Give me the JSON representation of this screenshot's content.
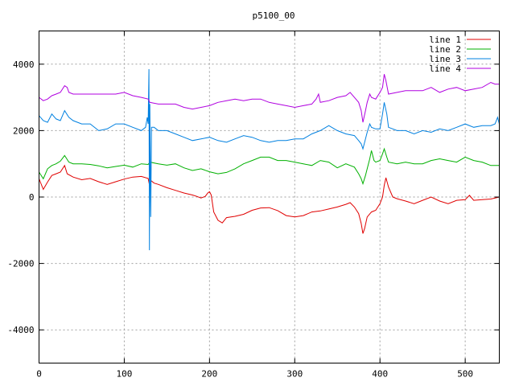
{
  "chart_data": {
    "type": "line",
    "title": "p5100_00",
    "xlabel": "",
    "ylabel": "",
    "xlim": [
      0,
      540
    ],
    "ylim": [
      -5000,
      5000
    ],
    "x_ticks": [
      0,
      100,
      200,
      300,
      400,
      500
    ],
    "y_ticks": [
      -4000,
      -2000,
      0,
      2000,
      4000
    ],
    "grid": true,
    "legend_position": "top-right",
    "series": [
      {
        "name": "line 1",
        "color": "#e00000",
        "points": [
          [
            0,
            550
          ],
          [
            5,
            230
          ],
          [
            10,
            450
          ],
          [
            15,
            650
          ],
          [
            20,
            700
          ],
          [
            25,
            750
          ],
          [
            30,
            950
          ],
          [
            33,
            700
          ],
          [
            40,
            600
          ],
          [
            50,
            520
          ],
          [
            60,
            560
          ],
          [
            70,
            460
          ],
          [
            80,
            380
          ],
          [
            90,
            460
          ],
          [
            100,
            540
          ],
          [
            110,
            600
          ],
          [
            120,
            620
          ],
          [
            128,
            560
          ],
          [
            129,
            440
          ],
          [
            130,
            520
          ],
          [
            135,
            420
          ],
          [
            140,
            380
          ],
          [
            150,
            280
          ],
          [
            160,
            200
          ],
          [
            170,
            120
          ],
          [
            180,
            60
          ],
          [
            185,
            20
          ],
          [
            190,
            -30
          ],
          [
            195,
            20
          ],
          [
            198,
            120
          ],
          [
            200,
            160
          ],
          [
            202,
            60
          ],
          [
            205,
            -450
          ],
          [
            210,
            -700
          ],
          [
            215,
            -780
          ],
          [
            220,
            -620
          ],
          [
            230,
            -580
          ],
          [
            240,
            -520
          ],
          [
            250,
            -400
          ],
          [
            260,
            -330
          ],
          [
            270,
            -320
          ],
          [
            280,
            -410
          ],
          [
            290,
            -560
          ],
          [
            300,
            -600
          ],
          [
            310,
            -560
          ],
          [
            320,
            -450
          ],
          [
            330,
            -420
          ],
          [
            340,
            -360
          ],
          [
            350,
            -300
          ],
          [
            360,
            -220
          ],
          [
            365,
            -170
          ],
          [
            370,
            -300
          ],
          [
            375,
            -500
          ],
          [
            378,
            -800
          ],
          [
            380,
            -1100
          ],
          [
            382,
            -950
          ],
          [
            385,
            -600
          ],
          [
            390,
            -450
          ],
          [
            395,
            -400
          ],
          [
            400,
            -200
          ],
          [
            403,
            0
          ],
          [
            405,
            350
          ],
          [
            407,
            580
          ],
          [
            410,
            300
          ],
          [
            415,
            0
          ],
          [
            420,
            -50
          ],
          [
            430,
            -120
          ],
          [
            440,
            -200
          ],
          [
            450,
            -100
          ],
          [
            460,
            0
          ],
          [
            470,
            -120
          ],
          [
            480,
            -200
          ],
          [
            490,
            -100
          ],
          [
            500,
            -80
          ],
          [
            505,
            50
          ],
          [
            510,
            -100
          ],
          [
            520,
            -80
          ],
          [
            530,
            -60
          ],
          [
            540,
            0
          ]
        ]
      },
      {
        "name": "line 2",
        "color": "#00b000",
        "points": [
          [
            0,
            750
          ],
          [
            5,
            550
          ],
          [
            10,
            850
          ],
          [
            15,
            950
          ],
          [
            20,
            1000
          ],
          [
            25,
            1080
          ],
          [
            30,
            1250
          ],
          [
            35,
            1050
          ],
          [
            40,
            1000
          ],
          [
            50,
            1000
          ],
          [
            60,
            980
          ],
          [
            70,
            940
          ],
          [
            80,
            880
          ],
          [
            90,
            920
          ],
          [
            100,
            960
          ],
          [
            110,
            900
          ],
          [
            120,
            1000
          ],
          [
            128,
            980
          ],
          [
            130,
            1050
          ],
          [
            140,
            1000
          ],
          [
            150,
            960
          ],
          [
            160,
            1000
          ],
          [
            170,
            880
          ],
          [
            180,
            800
          ],
          [
            190,
            850
          ],
          [
            200,
            760
          ],
          [
            210,
            700
          ],
          [
            220,
            740
          ],
          [
            230,
            850
          ],
          [
            240,
            1000
          ],
          [
            250,
            1100
          ],
          [
            260,
            1200
          ],
          [
            270,
            1200
          ],
          [
            280,
            1100
          ],
          [
            290,
            1100
          ],
          [
            300,
            1050
          ],
          [
            310,
            1000
          ],
          [
            320,
            950
          ],
          [
            330,
            1100
          ],
          [
            340,
            1050
          ],
          [
            350,
            880
          ],
          [
            360,
            1000
          ],
          [
            370,
            900
          ],
          [
            375,
            700
          ],
          [
            378,
            550
          ],
          [
            380,
            400
          ],
          [
            383,
            650
          ],
          [
            385,
            850
          ],
          [
            388,
            1150
          ],
          [
            390,
            1400
          ],
          [
            393,
            1100
          ],
          [
            395,
            1050
          ],
          [
            400,
            1100
          ],
          [
            403,
            1300
          ],
          [
            405,
            1450
          ],
          [
            408,
            1200
          ],
          [
            410,
            1050
          ],
          [
            420,
            1000
          ],
          [
            430,
            1050
          ],
          [
            440,
            1000
          ],
          [
            450,
            1000
          ],
          [
            460,
            1100
          ],
          [
            470,
            1150
          ],
          [
            480,
            1100
          ],
          [
            490,
            1050
          ],
          [
            500,
            1200
          ],
          [
            510,
            1100
          ],
          [
            520,
            1050
          ],
          [
            530,
            950
          ],
          [
            540,
            950
          ]
        ]
      },
      {
        "name": "line 3",
        "color": "#0080e0",
        "points": [
          [
            0,
            2450
          ],
          [
            5,
            2300
          ],
          [
            10,
            2250
          ],
          [
            15,
            2500
          ],
          [
            20,
            2350
          ],
          [
            25,
            2300
          ],
          [
            30,
            2600
          ],
          [
            35,
            2400
          ],
          [
            40,
            2300
          ],
          [
            50,
            2200
          ],
          [
            60,
            2200
          ],
          [
            70,
            2000
          ],
          [
            80,
            2050
          ],
          [
            90,
            2200
          ],
          [
            100,
            2200
          ],
          [
            110,
            2100
          ],
          [
            120,
            2000
          ],
          [
            125,
            2100
          ],
          [
            127,
            2400
          ],
          [
            128,
            2200
          ],
          [
            129,
            3850
          ],
          [
            129.5,
            -1600
          ],
          [
            130,
            2800
          ],
          [
            131,
            -600
          ],
          [
            132,
            2100
          ],
          [
            135,
            2100
          ],
          [
            140,
            2000
          ],
          [
            150,
            2000
          ],
          [
            160,
            1900
          ],
          [
            170,
            1800
          ],
          [
            180,
            1700
          ],
          [
            190,
            1750
          ],
          [
            200,
            1800
          ],
          [
            210,
            1700
          ],
          [
            220,
            1650
          ],
          [
            230,
            1750
          ],
          [
            240,
            1850
          ],
          [
            250,
            1800
          ],
          [
            260,
            1700
          ],
          [
            270,
            1650
          ],
          [
            280,
            1700
          ],
          [
            290,
            1700
          ],
          [
            300,
            1750
          ],
          [
            310,
            1750
          ],
          [
            320,
            1900
          ],
          [
            330,
            2000
          ],
          [
            340,
            2150
          ],
          [
            350,
            2000
          ],
          [
            360,
            1900
          ],
          [
            370,
            1850
          ],
          [
            375,
            1700
          ],
          [
            378,
            1600
          ],
          [
            380,
            1450
          ],
          [
            383,
            1750
          ],
          [
            385,
            1950
          ],
          [
            388,
            2200
          ],
          [
            390,
            2100
          ],
          [
            395,
            2050
          ],
          [
            400,
            2050
          ],
          [
            403,
            2500
          ],
          [
            405,
            2850
          ],
          [
            408,
            2500
          ],
          [
            410,
            2100
          ],
          [
            420,
            2000
          ],
          [
            430,
            2000
          ],
          [
            440,
            1900
          ],
          [
            450,
            2000
          ],
          [
            460,
            1950
          ],
          [
            470,
            2050
          ],
          [
            480,
            2000
          ],
          [
            490,
            2100
          ],
          [
            500,
            2200
          ],
          [
            510,
            2100
          ],
          [
            520,
            2150
          ],
          [
            530,
            2150
          ],
          [
            535,
            2200
          ],
          [
            538,
            2400
          ],
          [
            540,
            2200
          ]
        ]
      },
      {
        "name": "line 4",
        "color": "#b000e0",
        "points": [
          [
            0,
            3000
          ],
          [
            5,
            2900
          ],
          [
            10,
            2950
          ],
          [
            15,
            3050
          ],
          [
            20,
            3100
          ],
          [
            25,
            3150
          ],
          [
            30,
            3350
          ],
          [
            33,
            3300
          ],
          [
            35,
            3150
          ],
          [
            40,
            3100
          ],
          [
            50,
            3100
          ],
          [
            60,
            3100
          ],
          [
            70,
            3100
          ],
          [
            80,
            3100
          ],
          [
            90,
            3100
          ],
          [
            100,
            3150
          ],
          [
            110,
            3050
          ],
          [
            120,
            3000
          ],
          [
            128,
            2950
          ],
          [
            130,
            2850
          ],
          [
            140,
            2800
          ],
          [
            150,
            2800
          ],
          [
            160,
            2800
          ],
          [
            170,
            2700
          ],
          [
            180,
            2650
          ],
          [
            190,
            2700
          ],
          [
            200,
            2750
          ],
          [
            210,
            2850
          ],
          [
            220,
            2900
          ],
          [
            230,
            2950
          ],
          [
            240,
            2900
          ],
          [
            250,
            2950
          ],
          [
            260,
            2950
          ],
          [
            270,
            2850
          ],
          [
            280,
            2800
          ],
          [
            290,
            2750
          ],
          [
            300,
            2700
          ],
          [
            310,
            2750
          ],
          [
            320,
            2800
          ],
          [
            325,
            2950
          ],
          [
            328,
            3100
          ],
          [
            330,
            2850
          ],
          [
            340,
            2900
          ],
          [
            350,
            3000
          ],
          [
            360,
            3050
          ],
          [
            365,
            3150
          ],
          [
            370,
            3000
          ],
          [
            375,
            2850
          ],
          [
            378,
            2600
          ],
          [
            380,
            2250
          ],
          [
            383,
            2600
          ],
          [
            385,
            2850
          ],
          [
            388,
            3100
          ],
          [
            390,
            3000
          ],
          [
            395,
            2950
          ],
          [
            400,
            3150
          ],
          [
            403,
            3300
          ],
          [
            405,
            3700
          ],
          [
            407,
            3500
          ],
          [
            410,
            3100
          ],
          [
            420,
            3150
          ],
          [
            430,
            3200
          ],
          [
            440,
            3200
          ],
          [
            450,
            3200
          ],
          [
            460,
            3300
          ],
          [
            470,
            3150
          ],
          [
            480,
            3250
          ],
          [
            490,
            3300
          ],
          [
            500,
            3200
          ],
          [
            510,
            3250
          ],
          [
            520,
            3300
          ],
          [
            530,
            3450
          ],
          [
            535,
            3400
          ],
          [
            540,
            3400
          ]
        ]
      }
    ]
  }
}
